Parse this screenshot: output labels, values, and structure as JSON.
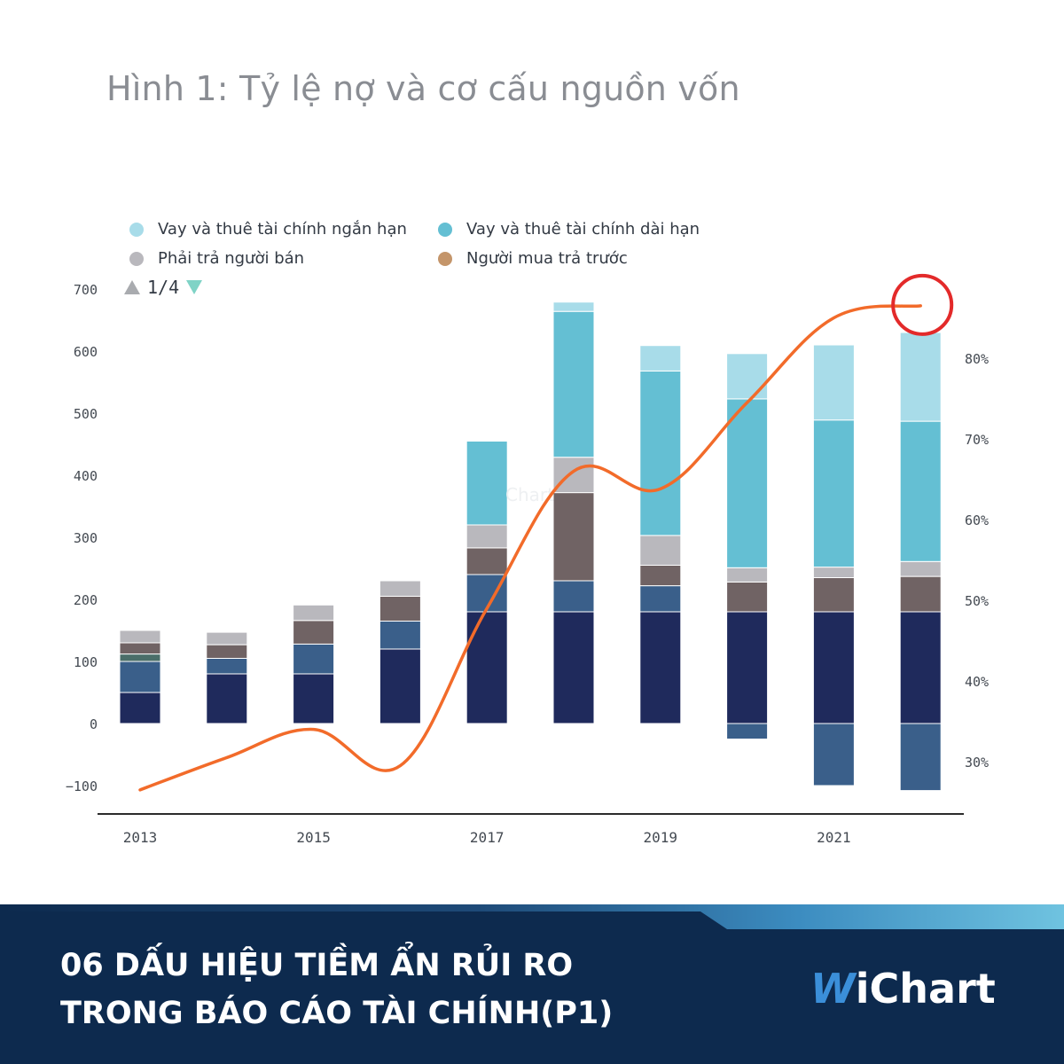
{
  "title": "Hình 1: Tỷ lệ nợ và cơ cấu nguồn vốn",
  "legend": [
    {
      "label": "Vay và thuê tài chính ngắn hạn",
      "color": "#a8dce9"
    },
    {
      "label": "Vay và thuê tài chính dài hạn",
      "color": "#64bfd3"
    },
    {
      "label": "Phải trả người bán",
      "color": "#b9b8bd"
    },
    {
      "label": "Người mua trả trước",
      "color": "#c4956a"
    }
  ],
  "pager": {
    "text": "1/4"
  },
  "chart_data": {
    "type": "bar",
    "stacked": true,
    "years": [
      "2013",
      "2014",
      "2015",
      "2016",
      "2017",
      "2018",
      "2019",
      "2020",
      "2021",
      "2022"
    ],
    "x_tick_labels": [
      "2013",
      "2015",
      "2017",
      "2019",
      "2021"
    ],
    "y_left_ticks": [
      "700",
      "600",
      "500",
      "400",
      "300",
      "200",
      "100",
      "0",
      "−100"
    ],
    "y_right_ticks": [
      "80%",
      "70%",
      "60%",
      "50%",
      "40%",
      "30%"
    ],
    "ylim_left": [
      -100,
      700
    ],
    "series": [
      {
        "color": "#1f2a5c",
        "values": [
          50,
          80,
          80,
          120,
          180,
          180,
          180,
          180,
          180,
          180
        ]
      },
      {
        "color": "#3a5f8a",
        "values": [
          50,
          25,
          48,
          45,
          60,
          50,
          42,
          -25,
          -100,
          -108
        ]
      },
      {
        "color": "#4a6e69",
        "values": [
          12,
          0,
          0,
          0,
          0,
          0,
          0,
          0,
          0,
          0
        ]
      },
      {
        "color": "#706364",
        "values": [
          18,
          22,
          38,
          40,
          43,
          142,
          33,
          48,
          55,
          57
        ]
      },
      {
        "color": "#b9b8bd",
        "values": [
          20,
          20,
          25,
          25,
          37,
          57,
          48,
          23,
          17,
          24
        ]
      },
      {
        "color": "#64bfd3",
        "values": [
          0,
          0,
          0,
          0,
          135,
          235,
          265,
          272,
          237,
          226
        ]
      },
      {
        "color": "#a8dce9",
        "values": [
          0,
          0,
          0,
          0,
          0,
          15,
          41,
          73,
          121,
          143
        ]
      }
    ],
    "line": {
      "color": "#f26b2a",
      "values": [
        26.5,
        30.5,
        34,
        29.5,
        49,
        66,
        63.8,
        74.5,
        85,
        86.5
      ]
    },
    "highlight_color": "#e32a2a"
  },
  "footer": {
    "headline_line1": "06 DẤU HIỆU TIỀM ẨN RỦI RO",
    "headline_line2": "TRONG BÁO CÁO TÀI CHÍNH(P1)",
    "logo_w": "W",
    "logo_text": "iChart"
  }
}
